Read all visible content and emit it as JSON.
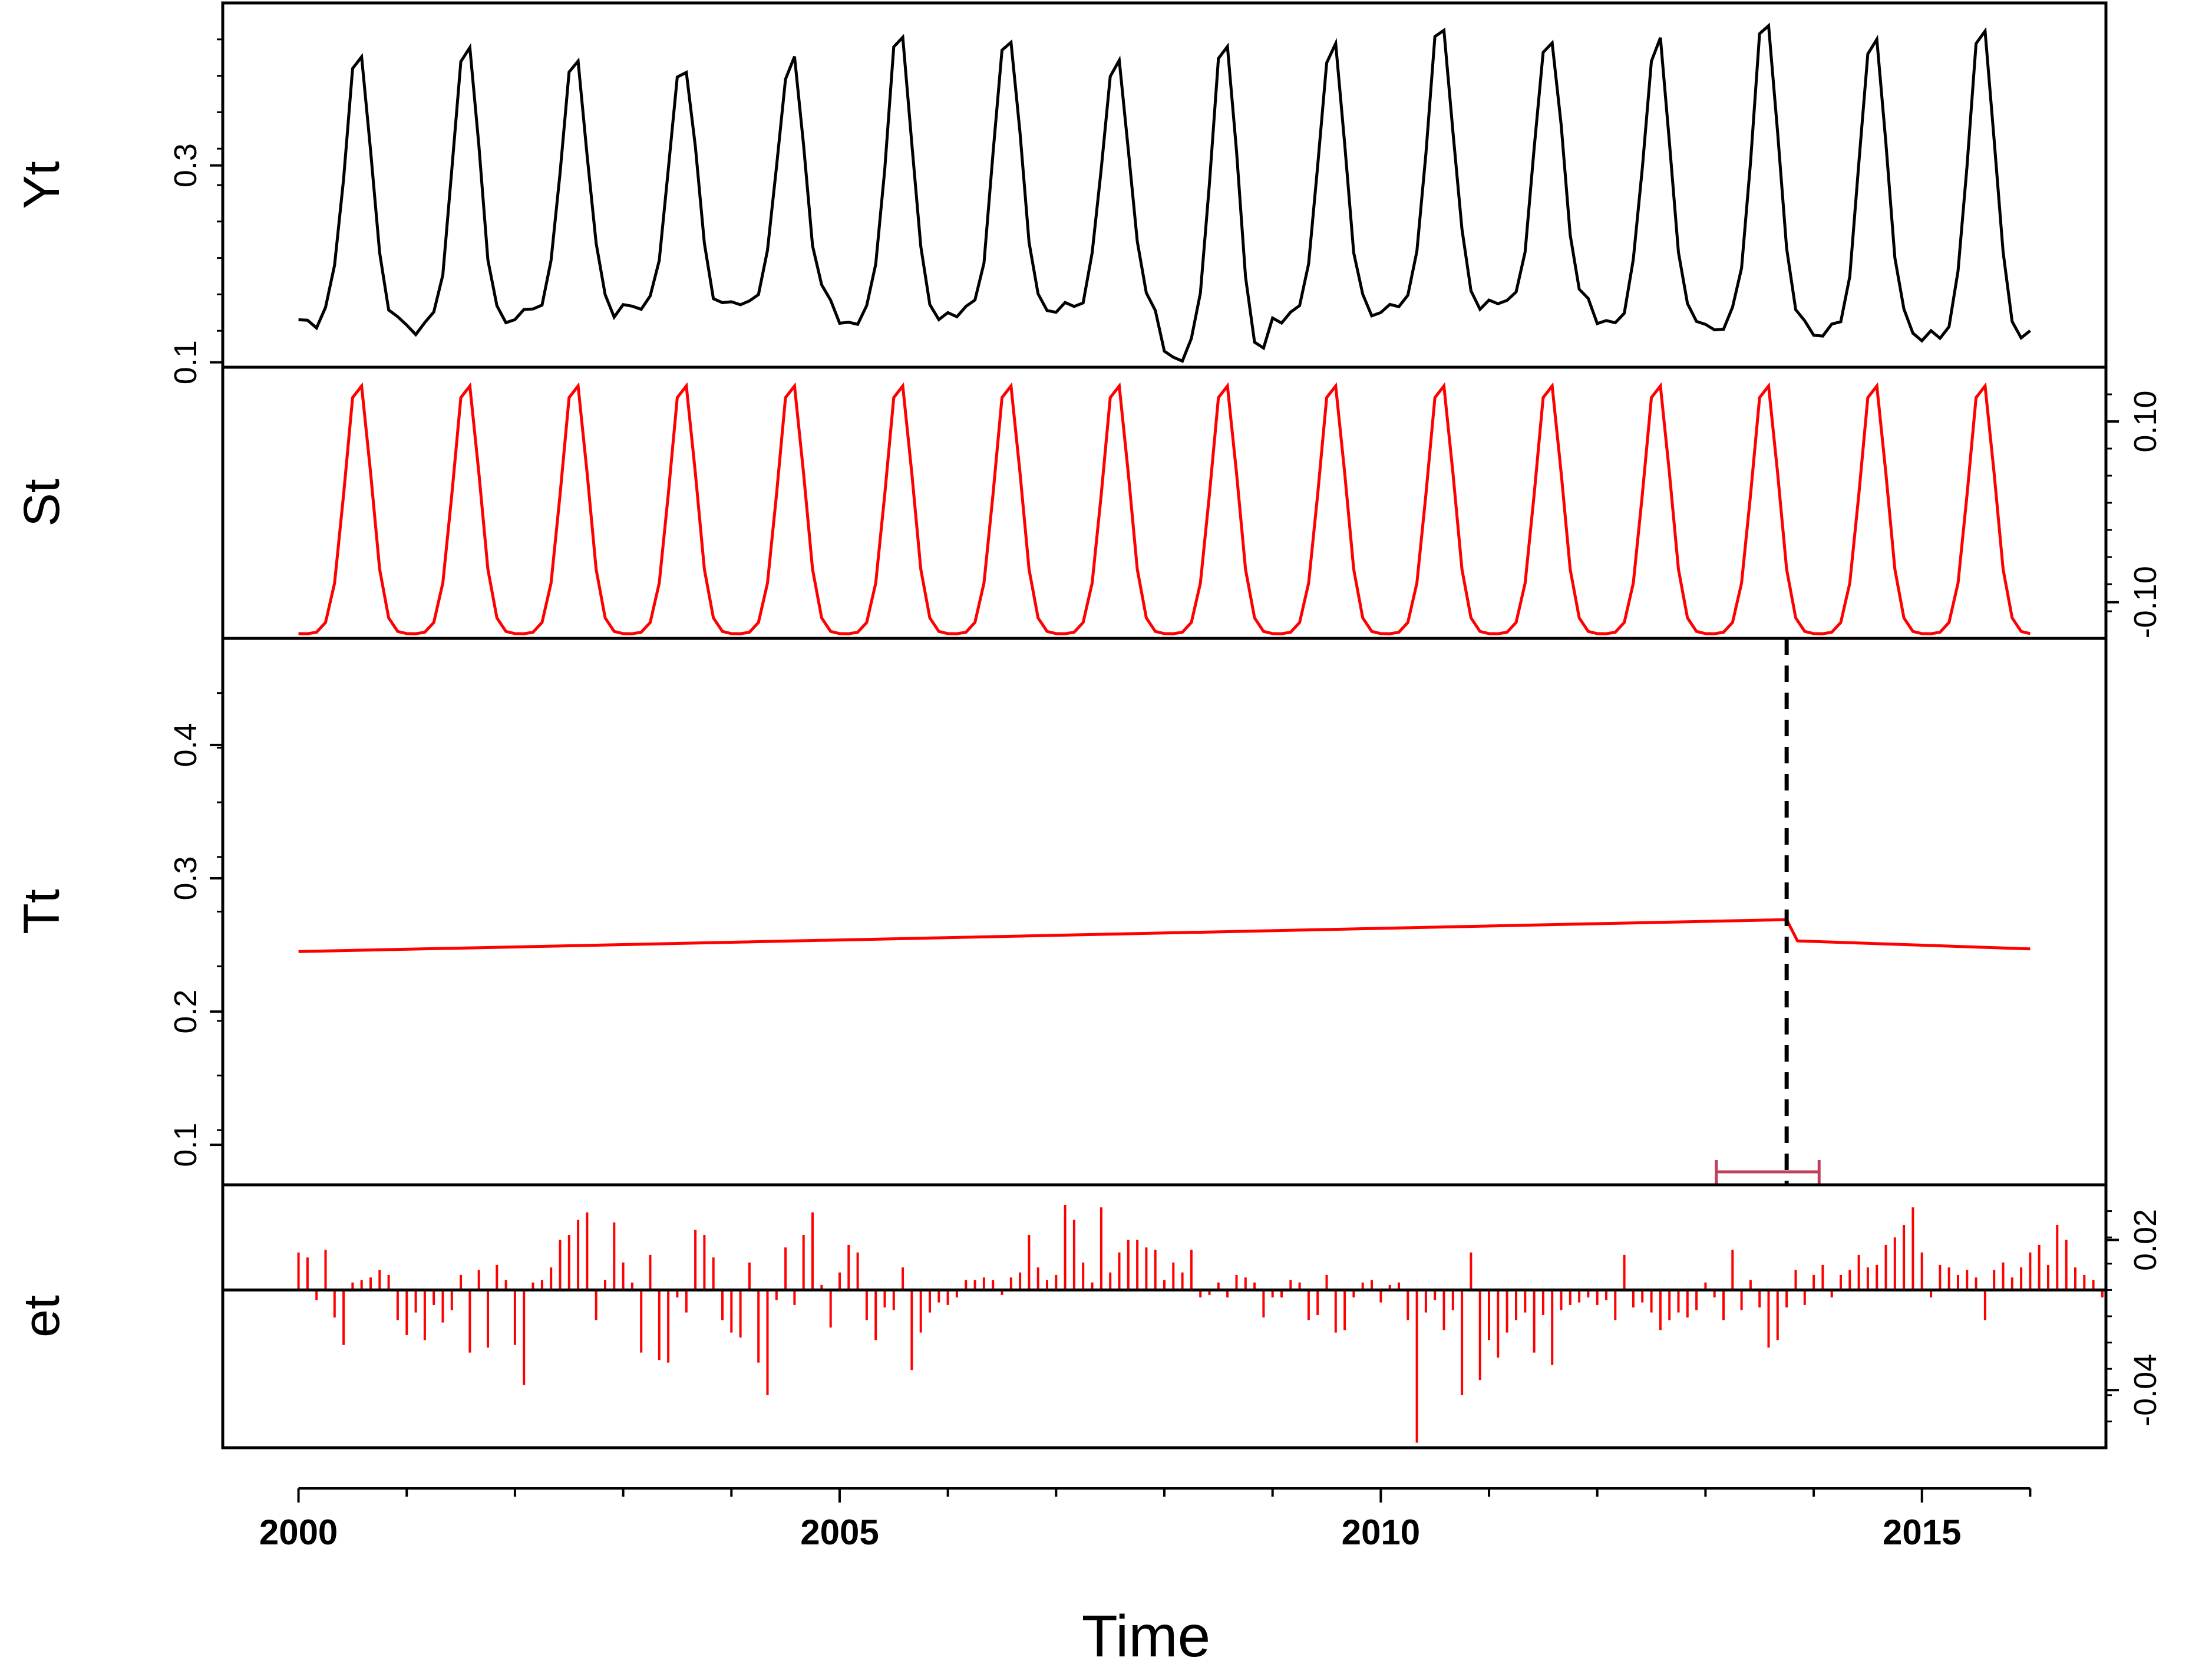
{
  "chart_data": {
    "type": "line",
    "xlabel": "Time",
    "x_ticks": [
      2000,
      2005,
      2010,
      2015
    ],
    "xlim": [
      1999.3,
      2016.7
    ],
    "panels": [
      {
        "id": "yt",
        "ylabel": "Yt",
        "y_ticks": [
          0.1,
          0.3
        ],
        "y_axis_side": "left",
        "ylim": [
          0.095,
          0.465
        ],
        "color": "#000000",
        "series_type": "line",
        "yearly_peaks": [
          0.42,
          0.43,
          0.415,
          0.41,
          0.415,
          0.44,
          0.44,
          0.415,
          0.435,
          0.43,
          0.45,
          0.44,
          0.435,
          0.455,
          0.44,
          0.45
        ],
        "yearly_troughs": [
          0.14,
          0.135,
          0.15,
          0.155,
          0.16,
          0.14,
          0.15,
          0.155,
          0.105,
          0.145,
          0.155,
          0.16,
          0.14,
          0.135,
          0.13,
          0.125
        ],
        "start": 2000.0,
        "end": 2016.0
      },
      {
        "id": "st",
        "ylabel": "St",
        "y_ticks": [
          -0.1,
          0.1
        ],
        "y_tick_labels": [
          "-0.10",
          "0.10"
        ],
        "y_axis_side": "right",
        "ylim": [
          -0.14,
          0.16
        ],
        "color": "#ff0000",
        "series_type": "line",
        "amplitude_max": 0.15,
        "amplitude_min": -0.135,
        "start": 2000.0,
        "end": 2016.0
      },
      {
        "id": "tt",
        "ylabel": "Tt",
        "y_ticks": [
          0.1,
          0.2,
          0.3,
          0.4
        ],
        "y_axis_side": "left",
        "ylim": [
          0.07,
          0.48
        ],
        "color": "#ff0000",
        "series_type": "line",
        "trend_points": [
          [
            2000.0,
            0.245
          ],
          [
            2013.75,
            0.269
          ],
          [
            2013.85,
            0.253
          ],
          [
            2016.0,
            0.247
          ]
        ],
        "breakpoint": 2013.75,
        "breakpoint_ci": [
          2013.1,
          2014.05
        ],
        "ci_color": "#c0405a"
      },
      {
        "id": "et",
        "ylabel": "et",
        "y_ticks": [
          -0.04,
          0.02
        ],
        "y_tick_labels": [
          "-0.04",
          "0.02"
        ],
        "y_axis_side": "right",
        "ylim": [
          -0.063,
          0.042
        ],
        "color": "#ff0000",
        "series_type": "vertical_bars",
        "start": 2000.0,
        "step": 0.0833333,
        "values": [
          0.015,
          0.013,
          -0.004,
          0.016,
          -0.011,
          -0.022,
          0.003,
          0.004,
          0.005,
          0.008,
          0.006,
          -0.012,
          -0.018,
          -0.009,
          -0.02,
          -0.006,
          -0.013,
          -0.008,
          0.006,
          -0.025,
          0.008,
          -0.023,
          0.01,
          0.004,
          -0.022,
          -0.038,
          0.003,
          0.004,
          0.009,
          0.02,
          0.022,
          0.028,
          0.031,
          -0.012,
          0.004,
          0.027,
          0.011,
          0.003,
          -0.025,
          0.014,
          -0.028,
          -0.029,
          -0.003,
          -0.009,
          0.024,
          0.022,
          0.013,
          -0.012,
          -0.017,
          -0.019,
          0.011,
          -0.029,
          -0.042,
          -0.004,
          0.017,
          -0.006,
          0.022,
          0.031,
          0.002,
          -0.015,
          0.007,
          0.018,
          0.015,
          -0.012,
          -0.02,
          -0.007,
          -0.008,
          0.009,
          -0.032,
          -0.017,
          -0.009,
          -0.005,
          -0.006,
          -0.003,
          0.004,
          0.004,
          0.005,
          0.004,
          -0.002,
          0.005,
          0.007,
          0.022,
          0.009,
          0.004,
          0.006,
          0.034,
          0.028,
          0.011,
          0.003,
          0.033,
          0.007,
          0.015,
          0.02,
          0.02,
          0.017,
          0.016,
          0.004,
          0.011,
          0.007,
          0.016,
          -0.003,
          -0.002,
          0.003,
          -0.003,
          0.006,
          0.005,
          0.003,
          -0.011,
          -0.003,
          -0.003,
          0.004,
          0.003,
          -0.012,
          -0.01,
          0.006,
          -0.017,
          -0.016,
          -0.003,
          0.003,
          0.004,
          -0.005,
          0.002,
          0.003,
          -0.012,
          -0.061,
          -0.009,
          -0.004,
          -0.016,
          -0.008,
          -0.042,
          0.015,
          -0.036,
          -0.02,
          -0.027,
          -0.017,
          -0.012,
          -0.009,
          -0.025,
          -0.01,
          -0.03,
          -0.008,
          -0.006,
          -0.005,
          -0.003,
          -0.006,
          -0.004,
          -0.012,
          0.014,
          -0.007,
          -0.005,
          -0.009,
          -0.016,
          -0.012,
          -0.009,
          -0.011,
          -0.008,
          0.003,
          -0.003,
          -0.012,
          0.016,
          -0.008,
          0.004,
          -0.007,
          -0.023,
          -0.02,
          -0.007,
          0.008,
          -0.006,
          0.006,
          0.01,
          -0.003,
          0.006,
          0.008,
          0.014,
          0.009,
          0.01,
          0.018,
          0.021,
          0.026,
          0.033,
          0.015,
          -0.003,
          0.01,
          0.009,
          0.006,
          0.008,
          0.005,
          -0.012,
          0.008,
          0.011,
          0.005,
          0.009,
          0.015,
          0.018,
          0.01,
          0.026,
          0.02,
          0.009,
          0.006,
          0.004,
          -0.003,
          0.015,
          -0.039,
          -0.02,
          -0.022,
          -0.025,
          -0.025,
          -0.02,
          -0.01,
          -0.017,
          0.005,
          0.007,
          0.02,
          0.02,
          0.021,
          0.039,
          -0.022,
          0.005,
          0.006,
          -0.004,
          0.003,
          0.005,
          0.013,
          0.019,
          -0.007,
          0.021,
          0.033,
          0.028,
          0.017,
          0.013,
          0.009,
          0.014,
          0.018,
          0.01,
          -0.002,
          0.002,
          0.018,
          0.014,
          0.004,
          -0.008,
          -0.02,
          0.008,
          -0.012,
          -0.022,
          0.005,
          0.029,
          0.009,
          0.004,
          -0.002,
          -0.01,
          0.017,
          0.008,
          0.001,
          -0.005,
          -0.008,
          -0.011,
          -0.016,
          0.002,
          -0.013,
          0.013,
          0.02,
          0.025,
          0.009,
          0.033,
          0.003,
          0.005,
          0.004,
          -0.007,
          -0.012,
          -0.006,
          -0.022,
          -0.005,
          -0.012,
          0.004
        ]
      }
    ]
  }
}
